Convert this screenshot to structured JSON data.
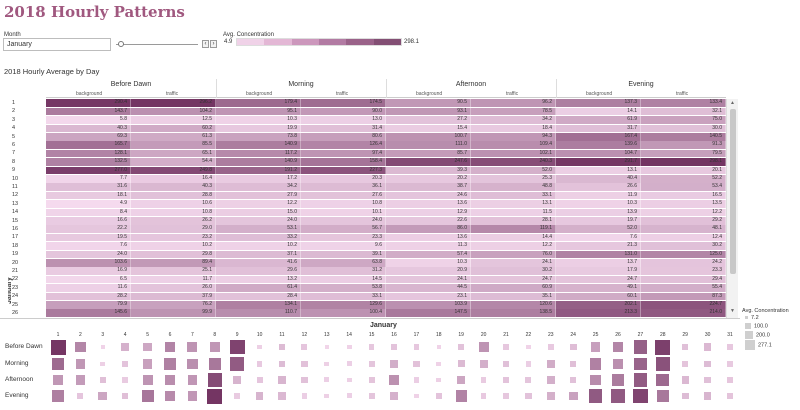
{
  "title": "2018 Hourly Patterns",
  "filter": {
    "label": "Month",
    "value": "January",
    "prev": "‹",
    "next": "›"
  },
  "color_legend": {
    "title": "Avg. Concentration",
    "min": "4.9",
    "max": "298.1",
    "ramp": [
      "#f0d2e8",
      "#e3b7d5",
      "#cc97bc",
      "#b27ba3",
      "#9a6289",
      "#834f74"
    ]
  },
  "sheet_title": "2018 Hourly Average by Day",
  "periods": [
    "Before Dawn",
    "Morning",
    "Afternoon",
    "Evening"
  ],
  "subcols": [
    "background",
    "traffic"
  ],
  "row_header": "January",
  "rows": [
    {
      "d": "1",
      "v": [
        "290.4",
        "296.2",
        "179.4",
        "174.5",
        "90.5",
        "96.2",
        "137.3",
        "133.4"
      ]
    },
    {
      "d": "2",
      "v": [
        "143.7",
        "104.2",
        "95.1",
        "90.0",
        "93.1",
        "78.5",
        "14.1",
        "32.1"
      ]
    },
    {
      "d": "3",
      "v": [
        "5.8",
        "12.5",
        "10.3",
        "13.0",
        "27.2",
        "34.2",
        "61.9",
        "75.0"
      ]
    },
    {
      "d": "4",
      "v": [
        "40.3",
        "60.2",
        "19.9",
        "31.4",
        "15.4",
        "18.4",
        "31.7",
        "30.0"
      ]
    },
    {
      "d": "5",
      "v": [
        "69.3",
        "61.3",
        "73.8",
        "80.6",
        "100.7",
        "94.3",
        "167.4",
        "140.5"
      ]
    },
    {
      "d": "6",
      "v": [
        "165.7",
        "85.5",
        "140.9",
        "126.4",
        "111.0",
        "109.4",
        "139.6",
        "91.3"
      ]
    },
    {
      "d": "7",
      "v": [
        "128.1",
        "65.1",
        "117.2",
        "97.4",
        "85.7",
        "102.1",
        "104.7",
        "79.5"
      ]
    },
    {
      "d": "8",
      "v": [
        "132.5",
        "54.4",
        "140.9",
        "158.4",
        "247.6",
        "240.3",
        "291.7",
        "298.1"
      ]
    },
    {
      "d": "9",
      "v": [
        "277.0",
        "249.8",
        "191.2",
        "227.3",
        "39.3",
        "52.0",
        "13.1",
        "20.1"
      ]
    },
    {
      "d": "10",
      "v": [
        "7.7",
        "16.4",
        "17.2",
        "20.3",
        "20.2",
        "25.3",
        "40.4",
        "52.2"
      ]
    },
    {
      "d": "11",
      "v": [
        "31.6",
        "40.3",
        "34.2",
        "36.1",
        "38.7",
        "48.8",
        "26.6",
        "53.4"
      ]
    },
    {
      "d": "12",
      "v": [
        "18.1",
        "28.8",
        "27.9",
        "27.6",
        "24.6",
        "33.1",
        "11.9",
        "16.5"
      ]
    },
    {
      "d": "13",
      "v": [
        "4.9",
        "10.6",
        "12.2",
        "10.8",
        "13.6",
        "13.1",
        "10.3",
        "13.5"
      ]
    },
    {
      "d": "14",
      "v": [
        "8.4",
        "10.8",
        "15.0",
        "10.1",
        "12.9",
        "11.5",
        "13.9",
        "12.2"
      ]
    },
    {
      "d": "15",
      "v": [
        "16.6",
        "26.2",
        "24.0",
        "24.0",
        "22.6",
        "28.1",
        "19.7",
        "29.2"
      ]
    },
    {
      "d": "16",
      "v": [
        "22.2",
        "29.0",
        "53.1",
        "56.7",
        "86.0",
        "119.1",
        "52.0",
        "48.1"
      ]
    },
    {
      "d": "17",
      "v": [
        "19.5",
        "23.2",
        "33.2",
        "23.3",
        "13.6",
        "14.4",
        "7.6",
        "12.4"
      ]
    },
    {
      "d": "18",
      "v": [
        "7.6",
        "10.2",
        "10.2",
        "9.6",
        "11.3",
        "12.2",
        "21.3",
        "30.2"
      ]
    },
    {
      "d": "19",
      "v": [
        "24.0",
        "29.8",
        "37.1",
        "39.1",
        "57.4",
        "76.0",
        "131.0",
        "125.0"
      ]
    },
    {
      "d": "20",
      "v": [
        "103.6",
        "89.4",
        "41.6",
        "63.8",
        "10.3",
        "24.1",
        "13.7",
        "24.2"
      ]
    },
    {
      "d": "21",
      "v": [
        "16.9",
        "25.1",
        "29.6",
        "31.2",
        "20.9",
        "30.2",
        "17.9",
        "23.3"
      ]
    },
    {
      "d": "22",
      "v": [
        "6.5",
        "11.7",
        "13.2",
        "14.5",
        "24.1",
        "24.7",
        "24.7",
        "29.4"
      ]
    },
    {
      "d": "23",
      "v": [
        "11.6",
        "26.0",
        "61.4",
        "53.8",
        "44.5",
        "60.9",
        "49.1",
        "55.4"
      ]
    },
    {
      "d": "24",
      "v": [
        "28.2",
        "37.9",
        "28.4",
        "33.1",
        "23.1",
        "35.1",
        "60.1",
        "87.3"
      ]
    },
    {
      "d": "25",
      "v": [
        "79.9",
        "76.2",
        "134.1",
        "129.6",
        "103.9",
        "120.6",
        "202.1",
        "224.7"
      ]
    },
    {
      "d": "26",
      "v": [
        "145.6",
        "99.9",
        "110.7",
        "100.4",
        "147.5",
        "138.5",
        "213.3",
        "214.0"
      ]
    }
  ],
  "bubble_chart": {
    "month": "January",
    "days": [
      "1",
      "2",
      "3",
      "4",
      "5",
      "6",
      "7",
      "8",
      "9",
      "10",
      "11",
      "12",
      "13",
      "14",
      "15",
      "16",
      "17",
      "18",
      "19",
      "20",
      "21",
      "22",
      "23",
      "24",
      "25",
      "26",
      "27",
      "28",
      "29",
      "30",
      "31"
    ],
    "row_labels": [
      "Before Dawn",
      "Morning",
      "Afternoon",
      "Evening"
    ],
    "values": [
      [
        293,
        124,
        9,
        50,
        65,
        126,
        97,
        93,
        263,
        12,
        36,
        23,
        8,
        10,
        21,
        26,
        21,
        9,
        27,
        97,
        21,
        9,
        19,
        33,
        78,
        123,
        200,
        270,
        30,
        40,
        20
      ],
      [
        177,
        93,
        12,
        26,
        77,
        134,
        107,
        150,
        209,
        19,
        35,
        28,
        12,
        13,
        24,
        55,
        28,
        10,
        38,
        53,
        30,
        14,
        58,
        31,
        132,
        106,
        190,
        230,
        25,
        35,
        18
      ],
      [
        93,
        86,
        31,
        17,
        98,
        110,
        94,
        244,
        46,
        23,
        44,
        29,
        13,
        12,
        25,
        103,
        14,
        12,
        67,
        17,
        26,
        24,
        53,
        29,
        112,
        143,
        210,
        180,
        40,
        30,
        22
      ],
      [
        136,
        23,
        68,
        31,
        154,
        115,
        92,
        295,
        17,
        46,
        40,
        14,
        12,
        13,
        24,
        50,
        10,
        26,
        128,
        19,
        21,
        27,
        52,
        74,
        213,
        214,
        260,
        150,
        35,
        45,
        25
      ]
    ],
    "size_legend": {
      "title": "Avg. Concentration",
      "items": [
        "7.2",
        "100.0",
        "200.0",
        "277.1"
      ]
    }
  },
  "scroll": {
    "up": "▲",
    "down": "▼"
  }
}
